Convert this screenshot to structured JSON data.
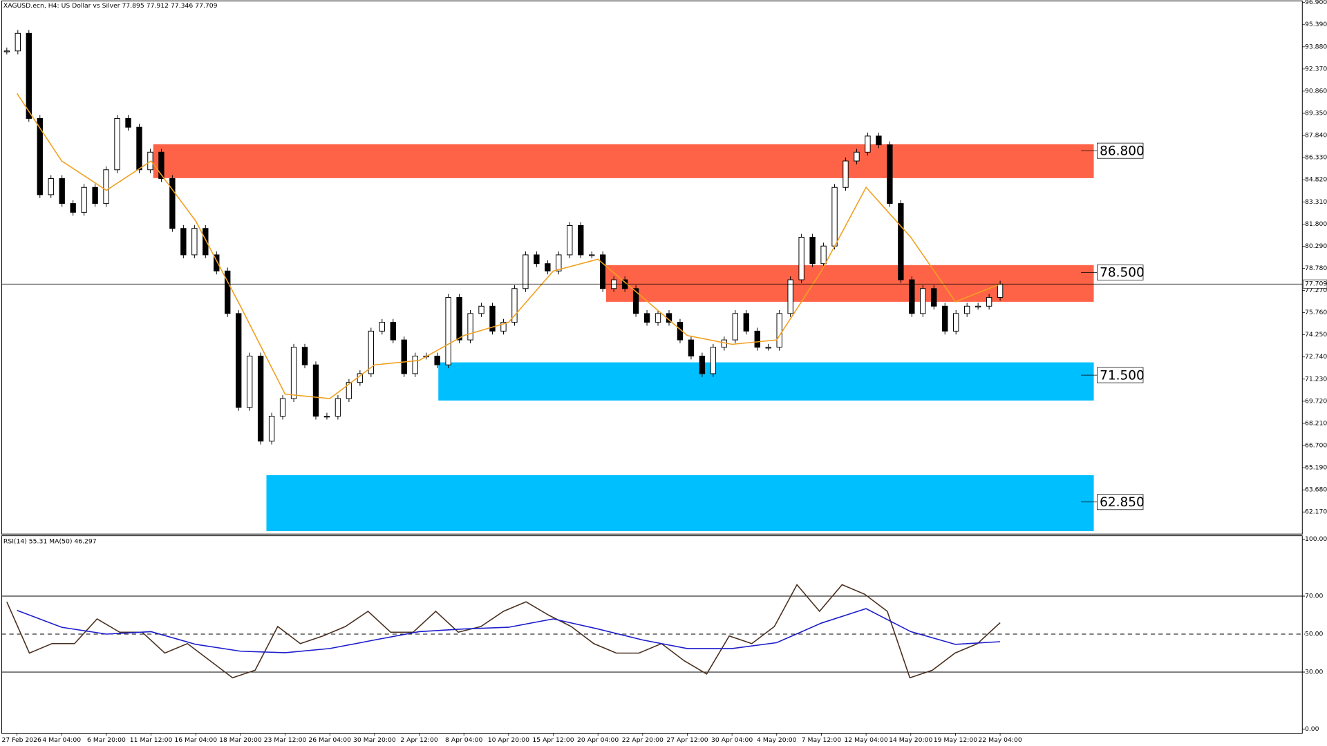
{
  "chart_data": [
    {
      "type": "candlestick",
      "title": "XAGUSD.ecn, H4:  US Dollar vs Silver  77.895 77.912 77.346 77.709",
      "categories": [
        "27 Feb 2026",
        "4 Mar 04:00",
        "6 Mar 20:00",
        "11 Mar 12:00",
        "16 Mar 04:00",
        "18 Mar 20:00",
        "23 Mar 12:00",
        "26 Mar 04:00",
        "30 Mar 20:00",
        "2 Apr 12:00",
        "8 Apr 04:00",
        "10 Apr 20:00",
        "15 Apr 12:00",
        "20 Apr 04:00",
        "22 Apr 20:00",
        "27 Apr 12:00",
        "30 Apr 04:00",
        "4 May 20:00",
        "7 May 12:00",
        "12 May 04:00",
        "14 May 20:00",
        "19 May 12:00",
        "22 May 04:00"
      ],
      "close": [
        93.6,
        94.8,
        89.0,
        83.8,
        84.9,
        83.2,
        82.6,
        84.3,
        83.2,
        85.5,
        89.0,
        88.4,
        85.5,
        86.7,
        84.9,
        81.5,
        79.7,
        81.5,
        79.7,
        78.6,
        75.7,
        69.3,
        72.8,
        67.0,
        68.7,
        69.9,
        73.4,
        72.2,
        68.7,
        68.7,
        69.9,
        71.0,
        71.6,
        74.5,
        75.1,
        73.9,
        71.6,
        72.8,
        72.8,
        72.2,
        76.8,
        73.9,
        75.7,
        76.2,
        74.5,
        75.1,
        77.4,
        79.7,
        79.1,
        78.6,
        79.7,
        81.7,
        79.7,
        79.7,
        77.4,
        78.0,
        77.4,
        75.7,
        75.1,
        75.7,
        75.1,
        73.9,
        72.8,
        71.6,
        73.4,
        73.9,
        75.7,
        74.5,
        73.4,
        73.4,
        75.7,
        78.0,
        80.9,
        79.1,
        80.3,
        84.3,
        86.1,
        86.7,
        87.8,
        87.2,
        83.2,
        78.0,
        75.7,
        77.4,
        76.2,
        74.5,
        75.7,
        76.2,
        76.2,
        76.8,
        77.7
      ],
      "ma": {
        "color": "#f0a020",
        "values": [
          90.7,
          86.1,
          84.1,
          86.1,
          82.0,
          76.2,
          70.2,
          69.9,
          72.2,
          72.5,
          74.2,
          75.1,
          78.6,
          79.4,
          76.8,
          74.2,
          73.6,
          73.9,
          78.6,
          84.3,
          80.9,
          76.5,
          77.7
        ]
      },
      "zones": [
        {
          "value": 86.8,
          "label": "86.800",
          "top": 87.24,
          "bottom": 84.93,
          "color": "#ff6347"
        },
        {
          "value": 78.5,
          "label": "78.500",
          "top": 79.0,
          "bottom": 76.5,
          "color": "#ff6347"
        },
        {
          "value": 71.5,
          "label": "71.500",
          "top": 72.37,
          "bottom": 69.77,
          "color": "#00bfff"
        },
        {
          "value": 62.85,
          "label": "62.850",
          "top": 64.68,
          "bottom": 60.86,
          "color": "#00bfff"
        }
      ],
      "current": {
        "value": 77.709,
        "label": "77.709"
      },
      "ylim": [
        60.78,
        96.9
      ],
      "yticks": [
        {
          "value": 96.9,
          "label": "96.900"
        },
        {
          "value": 95.39,
          "label": "95.390"
        },
        {
          "value": 93.88,
          "label": "93.880"
        },
        {
          "value": 92.37,
          "label": "92.370"
        },
        {
          "value": 90.86,
          "label": "90.860"
        },
        {
          "value": 89.35,
          "label": "89.350"
        },
        {
          "value": 87.84,
          "label": "87.840"
        },
        {
          "value": 86.33,
          "label": "86.330"
        },
        {
          "value": 84.82,
          "label": "84.820"
        },
        {
          "value": 83.31,
          "label": "83.310"
        },
        {
          "value": 81.8,
          "label": "81.800"
        },
        {
          "value": 80.29,
          "label": "80.290"
        },
        {
          "value": 78.78,
          "label": "78.780"
        },
        {
          "value": 77.27,
          "label": "77.270"
        },
        {
          "value": 75.76,
          "label": "75.760"
        },
        {
          "value": 74.25,
          "label": "74.250"
        },
        {
          "value": 72.74,
          "label": "72.740"
        },
        {
          "value": 71.23,
          "label": "71.230"
        },
        {
          "value": 69.72,
          "label": "69.720"
        },
        {
          "value": 68.21,
          "label": "68.210"
        },
        {
          "value": 66.7,
          "label": "66.700"
        },
        {
          "value": 65.19,
          "label": "65.190"
        },
        {
          "value": 63.68,
          "label": "63.680"
        },
        {
          "value": 62.17,
          "label": "62.170"
        }
      ]
    },
    {
      "type": "line",
      "title": "RSI(14) 55.31 MA(50) 46.297",
      "series": [
        {
          "color": "#4a3020",
          "values": [
            67,
            40,
            45,
            45,
            58,
            51,
            51,
            40,
            45,
            36,
            27,
            31,
            54,
            45,
            49,
            54,
            62,
            51,
            51,
            62,
            51,
            54,
            62,
            67,
            60,
            54,
            45,
            40,
            40,
            45,
            36,
            29,
            49,
            45,
            54,
            76,
            62,
            76,
            71,
            62,
            27,
            31,
            40,
            45,
            56
          ]
        },
        {
          "color": "#1c1ccc",
          "values": [
            62.5,
            53.6,
            50,
            51.3,
            44.6,
            41,
            40.2,
            42.4,
            46.9,
            51.3,
            52.7,
            53.6,
            58,
            52.7,
            46.9,
            42.4,
            42.4,
            45.5,
            55.8,
            63.4,
            51.3,
            44.6,
            46
          ]
        }
      ],
      "ylim": [
        0,
        100
      ],
      "yticks": [
        {
          "value": 100,
          "label": "100.00"
        },
        {
          "value": 70,
          "label": "70.00"
        },
        {
          "value": 50,
          "label": "50.00"
        },
        {
          "value": 30,
          "label": "30.00"
        },
        {
          "value": 0,
          "label": "0.00"
        }
      ]
    }
  ]
}
